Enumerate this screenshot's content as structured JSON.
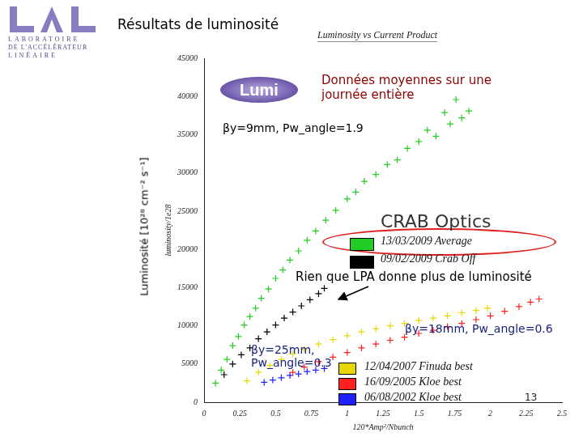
{
  "slide": {
    "header_title": "Résultats de luminosité",
    "logo_lines": [
      "LABORATOIRE",
      "DE L'ACCÉLÉRATEUR",
      "LINÉAIRE"
    ],
    "lumi_logo": "Lumi",
    "y_label": "Luminosité [10²⁸ cm⁻² s⁻¹]",
    "page_number": 13
  },
  "chart_data": {
    "type": "scatter",
    "title": "Luminosity vs Current Product",
    "x_label": "120*Amp²/Nbunch",
    "y_label": "luminosity/1e28",
    "xlim": [
      0,
      2.5
    ],
    "ylim": [
      0,
      45000
    ],
    "xticks": [
      0,
      0.25,
      0.5,
      0.75,
      1,
      1.25,
      1.5,
      1.75,
      2,
      2.25,
      2.5
    ],
    "yticks": [
      0,
      5000,
      10000,
      15000,
      20000,
      25000,
      30000,
      35000,
      40000,
      45000
    ],
    "grid": false,
    "marker": "cross",
    "legend": "lower right",
    "legend_title": "CRAB Optics",
    "annotations": [
      "Données moyennes sur une journée entière",
      "βy=9mm, Pw_angle=1.9",
      "Rien que LPA donne plus de luminosité",
      "βy=25mm, Pw_angle=0.3",
      "βy=18mm, Pw_angle=0.6"
    ],
    "series": [
      {
        "name": "13/03/2009 Average",
        "color": "#22cc22",
        "x": [
          0.08,
          0.12,
          0.16,
          0.2,
          0.24,
          0.28,
          0.32,
          0.36,
          0.4,
          0.45,
          0.5,
          0.55,
          0.6,
          0.66,
          0.72,
          0.78,
          0.85,
          0.92,
          1.0,
          1.06,
          1.12,
          1.2,
          1.28,
          1.35,
          1.42,
          1.5,
          1.56,
          1.62,
          1.68,
          1.72,
          1.76,
          1.8,
          1.85
        ],
        "values": [
          2500,
          4200,
          5600,
          7400,
          8600,
          10100,
          11200,
          12300,
          13600,
          14800,
          16200,
          17300,
          18600,
          19800,
          21200,
          22400,
          23800,
          25100,
          26600,
          27500,
          28900,
          29800,
          31100,
          31700,
          33200,
          34100,
          35600,
          34800,
          37900,
          36400,
          39600,
          37200,
          38100
        ]
      },
      {
        "name": "09/02/2009 Crab Off",
        "color": "#000000",
        "x": [
          0.14,
          0.2,
          0.26,
          0.32,
          0.38,
          0.44,
          0.5,
          0.56,
          0.62,
          0.68,
          0.74,
          0.8,
          0.84
        ],
        "values": [
          3600,
          5000,
          6200,
          7100,
          8300,
          9200,
          10100,
          11000,
          11800,
          12600,
          13400,
          14200,
          14900
        ]
      },
      {
        "name": "12/04/2007 Finuda best",
        "color": "#e8d800",
        "x": [
          0.3,
          0.38,
          0.46,
          0.54,
          0.62,
          0.7,
          0.8,
          0.9,
          1.0,
          1.1,
          1.2,
          1.3,
          1.4,
          1.5,
          1.6,
          1.7,
          1.8,
          1.9,
          1.98
        ],
        "values": [
          2800,
          3900,
          4800,
          5600,
          6300,
          6900,
          7600,
          8200,
          8700,
          9200,
          9600,
          10000,
          10300,
          10700,
          11000,
          11300,
          11700,
          12000,
          12300
        ]
      },
      {
        "name": "16/09/2005 Kloe best",
        "color": "#ff2020",
        "x": [
          0.62,
          0.7,
          0.8,
          0.9,
          1.0,
          1.1,
          1.2,
          1.3,
          1.4,
          1.5,
          1.6,
          1.7,
          1.8,
          1.9,
          2.0,
          2.1,
          2.2,
          2.28,
          2.34
        ],
        "values": [
          3900,
          4600,
          5300,
          5900,
          6500,
          7100,
          7600,
          8100,
          8500,
          9000,
          9400,
          9900,
          10300,
          10800,
          11300,
          11900,
          12500,
          13100,
          13500
        ]
      },
      {
        "name": "06/08/2002 Kloe best",
        "color": "#2020ff",
        "x": [
          0.42,
          0.48,
          0.54,
          0.6,
          0.66,
          0.72,
          0.78,
          0.84
        ],
        "values": [
          2600,
          2900,
          3200,
          3500,
          3700,
          4000,
          4200,
          4400
        ]
      }
    ]
  }
}
